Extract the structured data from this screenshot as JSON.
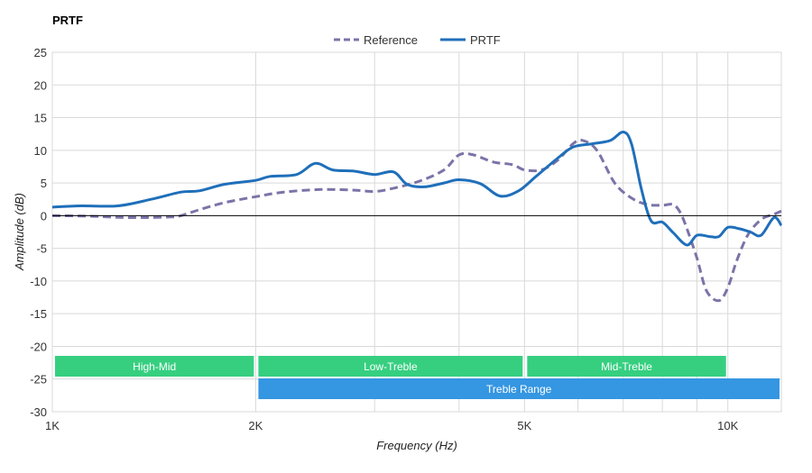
{
  "chart_data": {
    "type": "line",
    "title": "PRTF",
    "xlabel": "Frequency (Hz)",
    "ylabel": "Amplitude (dB)",
    "xscale": "log",
    "xlim": [
      1000,
      12000
    ],
    "ylim": [
      -30,
      25
    ],
    "grid": true,
    "legend_position": "top-center",
    "x_ticks": [
      {
        "value": 1000,
        "label": "1K"
      },
      {
        "value": 2000,
        "label": "2K"
      },
      {
        "value": 5000,
        "label": "5K"
      },
      {
        "value": 10000,
        "label": "10K"
      }
    ],
    "x_minor_gridlines": [
      3000,
      4000,
      6000,
      7000,
      8000,
      9000
    ],
    "y_ticks": [
      25,
      20,
      15,
      10,
      5,
      0,
      -5,
      -10,
      -15,
      -20,
      -25,
      -30
    ],
    "series": [
      {
        "name": "Reference",
        "style": "dashed",
        "color": "#7a74a8",
        "points": [
          [
            1000,
            0
          ],
          [
            1150,
            -0.1
          ],
          [
            1300,
            -0.3
          ],
          [
            1500,
            -0.2
          ],
          [
            1550,
            0
          ],
          [
            1650,
            0.9
          ],
          [
            1800,
            2
          ],
          [
            2000,
            2.9
          ],
          [
            2200,
            3.6
          ],
          [
            2500,
            4
          ],
          [
            2800,
            3.9
          ],
          [
            3000,
            3.7
          ],
          [
            3200,
            4.2
          ],
          [
            3500,
            5.3
          ],
          [
            3800,
            7
          ],
          [
            4000,
            9.3
          ],
          [
            4200,
            9.3
          ],
          [
            4500,
            8.2
          ],
          [
            4800,
            7.8
          ],
          [
            5000,
            7
          ],
          [
            5300,
            7
          ],
          [
            5600,
            8.5
          ],
          [
            5900,
            11
          ],
          [
            6100,
            11.5
          ],
          [
            6400,
            10
          ],
          [
            6800,
            5
          ],
          [
            7200,
            2.7
          ],
          [
            7600,
            1.7
          ],
          [
            8000,
            1.6
          ],
          [
            8300,
            1.7
          ],
          [
            8500,
            0.5
          ],
          [
            8700,
            -2
          ],
          [
            9000,
            -6.5
          ],
          [
            9300,
            -11.5
          ],
          [
            9700,
            -13
          ],
          [
            10000,
            -11
          ],
          [
            10300,
            -7
          ],
          [
            10700,
            -3
          ],
          [
            11200,
            -0.6
          ],
          [
            11700,
            0.2
          ],
          [
            12000,
            0.7
          ]
        ]
      },
      {
        "name": "PRTF",
        "style": "solid",
        "color": "#1f6fba",
        "points": [
          [
            1000,
            1.3
          ],
          [
            1100,
            1.5
          ],
          [
            1250,
            1.5
          ],
          [
            1400,
            2.5
          ],
          [
            1550,
            3.6
          ],
          [
            1650,
            3.8
          ],
          [
            1800,
            4.8
          ],
          [
            2000,
            5.4
          ],
          [
            2100,
            6
          ],
          [
            2300,
            6.3
          ],
          [
            2450,
            8
          ],
          [
            2600,
            7
          ],
          [
            2800,
            6.8
          ],
          [
            3000,
            6.3
          ],
          [
            3200,
            6.7
          ],
          [
            3350,
            4.8
          ],
          [
            3550,
            4.4
          ],
          [
            3800,
            5
          ],
          [
            4000,
            5.5
          ],
          [
            4300,
            4.9
          ],
          [
            4600,
            3
          ],
          [
            4900,
            3.8
          ],
          [
            5200,
            6
          ],
          [
            5600,
            8.8
          ],
          [
            5900,
            10.5
          ],
          [
            6300,
            11
          ],
          [
            6700,
            11.5
          ],
          [
            7000,
            12.8
          ],
          [
            7200,
            11
          ],
          [
            7450,
            4
          ],
          [
            7700,
            -0.8
          ],
          [
            8000,
            -1
          ],
          [
            8300,
            -2.6
          ],
          [
            8700,
            -4.5
          ],
          [
            9000,
            -3
          ],
          [
            9400,
            -3.2
          ],
          [
            9700,
            -3.2
          ],
          [
            10000,
            -1.8
          ],
          [
            10400,
            -2
          ],
          [
            10800,
            -2.5
          ],
          [
            11200,
            -3
          ],
          [
            11700,
            -0.3
          ],
          [
            12000,
            -1.5
          ]
        ]
      }
    ],
    "bands": [
      {
        "label": "High-Mid",
        "start": 1000,
        "end": 2000,
        "row": 1,
        "color": "#36cf80"
      },
      {
        "label": "Low-Treble",
        "start": 2000,
        "end": 5000,
        "row": 1,
        "color": "#36cf80"
      },
      {
        "label": "Mid-Treble",
        "start": 5000,
        "end": 10000,
        "row": 1,
        "color": "#36cf80"
      },
      {
        "label": "Treble Range",
        "start": 2000,
        "end": 12000,
        "row": 2,
        "color": "#3596e2"
      }
    ]
  }
}
